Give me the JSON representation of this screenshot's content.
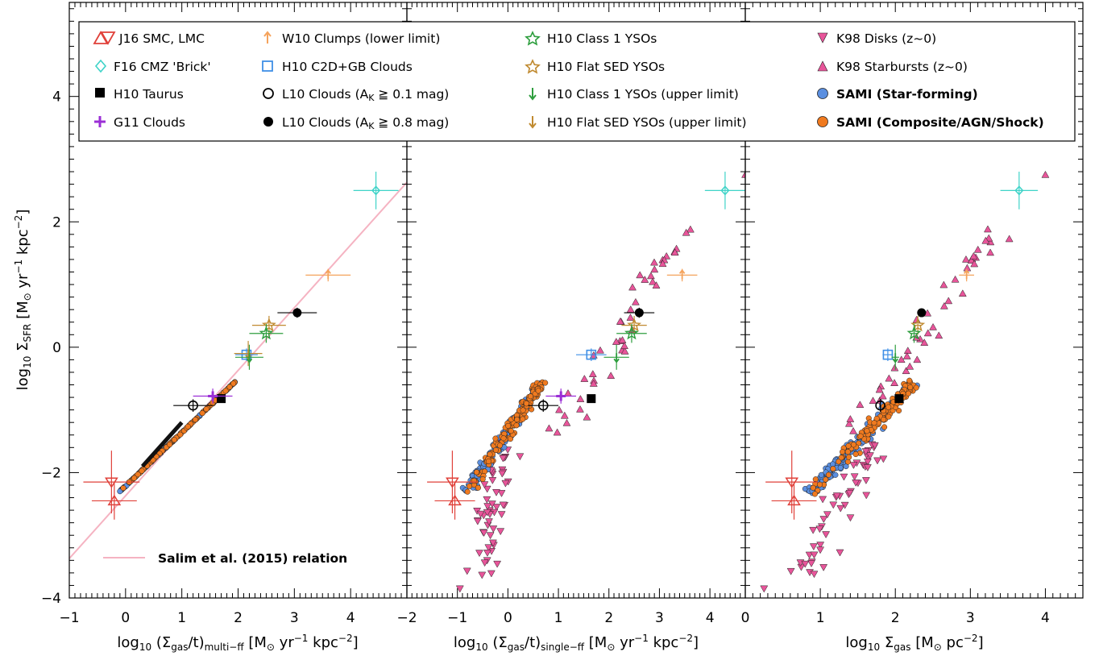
{
  "colors": {
    "sami_sf": "#5b8fe0",
    "sami_comp": "#f07a1f",
    "j16": "#e0413a",
    "f16": "#3fd3c8",
    "w10": "#f5a35c",
    "h10_c2d": "#3f8fe6",
    "h10_class1": "#2e9e3e",
    "h10_flat": "#c08a30",
    "g11": "#9b2fd6",
    "k98": "#e8559a",
    "salim": "#f5b3c2"
  },
  "legend": {
    "j16": "J16 SMC, LMC",
    "f16": "F16 CMZ 'Brick'",
    "h10_taurus": "H10 Taurus",
    "g11": "G11 Clouds",
    "w10": "W10 Clumps (lower limit)",
    "h10_c2d": "H10 C2D+GB Clouds",
    "l10_01_pre": "L10 Clouds (A",
    "l10_01_post": " ≧ 0.1 mag)",
    "l10_08_pre": "L10 Clouds (A",
    "l10_08_post": " ≧ 0.8 mag)",
    "h10_class1": "H10 Class 1 YSOs",
    "h10_flat": "H10 Flat SED YSOs",
    "h10_class1_ul": "H10 Class 1 YSOs (upper limit)",
    "h10_flat_ul": "H10 Flat SED YSOs (upper limit)",
    "k98_disks": "K98 Disks (z~0)",
    "k98_starbursts": "K98 Starbursts (z~0)",
    "sami_sf": "SAMI (Star-forming)",
    "sami_comp": "SAMI (Composite/AGN/Shock)",
    "salim": "Salim et al. (2015) relation",
    "k_sub": "K"
  },
  "chart_data": {
    "type": "scatter",
    "ylabel": "log10 ΣSFR [M⊙ yr−1 kpc−2]",
    "ylim": [
      -4,
      5.5
    ],
    "yticks": [
      "−4",
      "−2",
      "0",
      "2",
      "4"
    ],
    "panels": [
      {
        "xlabel": "log10 (Σgas/t)multi-ff [M⊙ yr−1 kpc−2]",
        "xlim": [
          -1,
          5
        ],
        "xticks": [
          "−1",
          "0",
          "1",
          "2",
          "3",
          "4"
        ],
        "line": {
          "name": "Salim et al. (2015) relation",
          "x": [
            -1,
            5
          ],
          "y": [
            -3.37,
            2.63
          ]
        },
        "points": [
          {
            "series": "J16 SMC",
            "marker": "tri-down-open",
            "x": -0.25,
            "y": -2.15,
            "xerr": 0.5,
            "yerr": 0.5
          },
          {
            "series": "J16 LMC",
            "marker": "tri-up-open",
            "x": -0.2,
            "y": -2.45,
            "xerr": 0.4,
            "yerr": 0.3
          },
          {
            "series": "F16 CMZ 'Brick'",
            "marker": "diamond-open",
            "x": 4.45,
            "y": 2.5,
            "xerr": 0.4,
            "yerr": 0.3
          },
          {
            "series": "W10 Clumps",
            "marker": "arrow-up",
            "x": 3.6,
            "y": 1.15,
            "xerr": 0.4,
            "yerr": 0.1
          },
          {
            "series": "L10 Clouds (0.8 mag)",
            "marker": "circle-filled",
            "x": 3.05,
            "y": 0.55,
            "xerr": 0.35,
            "yerr": 0.08
          },
          {
            "series": "H10 Flat SED YSOs",
            "marker": "star-open",
            "x": 2.55,
            "y": 0.35,
            "xerr": 0.3,
            "yerr": 0.15
          },
          {
            "series": "H10 Class 1 YSOs",
            "marker": "star-open",
            "x": 2.5,
            "y": 0.22,
            "xerr": 0.3,
            "yerr": 0.15
          },
          {
            "series": "H10 C2D+GB Clouds",
            "marker": "square-open",
            "x": 2.15,
            "y": -0.12,
            "xerr": 0.2,
            "yerr": 0.1
          },
          {
            "series": "H10 Flat SED YSOs (upper limit)",
            "marker": "arrow-down",
            "x": 2.18,
            "y": -0.1,
            "xerr": 0.25,
            "yerr": 0.2
          },
          {
            "series": "H10 Class 1 YSOs (upper limit)",
            "marker": "arrow-down",
            "x": 2.2,
            "y": -0.16,
            "xerr": 0.25,
            "yerr": 0.2
          },
          {
            "series": "H10 Taurus",
            "marker": "square-filled",
            "x": 1.7,
            "y": -0.82
          },
          {
            "series": "G11 Clouds",
            "marker": "plus",
            "x": 1.55,
            "y": -0.78,
            "xerr": 0.35,
            "yerr": 0.12
          },
          {
            "series": "L10 Clouds (0.1 mag)",
            "marker": "circle-open",
            "x": 1.2,
            "y": -0.93,
            "xerr": 0.35,
            "yerr": 0.1
          }
        ]
      },
      {
        "xlabel": "log10 (Σgas/t)single-ff [M⊙ yr−1 kpc−2]",
        "xlim": [
          -2,
          4.7
        ],
        "xticks": [
          "−2",
          "−1",
          "0",
          "1",
          "2",
          "3",
          "4"
        ],
        "points": [
          {
            "series": "J16 SMC",
            "marker": "tri-down-open",
            "x": -1.1,
            "y": -2.15,
            "xerr": 0.5,
            "yerr": 0.5
          },
          {
            "series": "J16 LMC",
            "marker": "tri-up-open",
            "x": -1.05,
            "y": -2.45,
            "xerr": 0.4,
            "yerr": 0.3
          },
          {
            "series": "F16 CMZ 'Brick'",
            "marker": "diamond-open",
            "x": 4.3,
            "y": 2.5,
            "xerr": 0.4,
            "yerr": 0.3
          },
          {
            "series": "W10 Clumps",
            "marker": "arrow-up",
            "x": 3.45,
            "y": 1.15,
            "xerr": 0.3,
            "yerr": 0.1
          },
          {
            "series": "L10 Clouds (0.8 mag)",
            "marker": "circle-filled",
            "x": 2.6,
            "y": 0.55,
            "xerr": 0.3,
            "yerr": 0.08
          },
          {
            "series": "H10 Flat SED YSOs",
            "marker": "star-open",
            "x": 2.5,
            "y": 0.35,
            "xerr": 0.25,
            "yerr": 0.15
          },
          {
            "series": "H10 Class 1 YSOs",
            "marker": "star-open",
            "x": 2.45,
            "y": 0.22,
            "xerr": 0.3,
            "yerr": 0.15
          },
          {
            "series": "H10 C2D+GB Clouds",
            "marker": "square-open",
            "x": 1.65,
            "y": -0.12,
            "xerr": 0.3,
            "yerr": 0.1
          },
          {
            "series": "H10 Class 1 YSOs (upper limit)",
            "marker": "arrow-down",
            "x": 2.15,
            "y": -0.16,
            "xerr": 0.25,
            "yerr": 0.2
          },
          {
            "series": "H10 Taurus",
            "marker": "square-filled",
            "x": 1.65,
            "y": -0.82
          },
          {
            "series": "G11 Clouds",
            "marker": "plus",
            "x": 1.05,
            "y": -0.78,
            "xerr": 0.3,
            "yerr": 0.12
          },
          {
            "series": "L10 Clouds (0.1 mag)",
            "marker": "circle-open",
            "x": 0.7,
            "y": -0.93,
            "xerr": 0.3,
            "yerr": 0.1
          }
        ]
      },
      {
        "xlabel": "log10 Σgas [M⊙ pc−2]",
        "xlim": [
          0,
          4.5
        ],
        "xticks": [
          "0",
          "1",
          "2",
          "3",
          "4"
        ],
        "points": [
          {
            "series": "J16 SMC",
            "marker": "tri-down-open",
            "x": 0.62,
            "y": -2.15,
            "xerr": 0.35,
            "yerr": 0.5
          },
          {
            "series": "J16 LMC",
            "marker": "tri-up-open",
            "x": 0.65,
            "y": -2.45,
            "xerr": 0.3,
            "yerr": 0.3
          },
          {
            "series": "F16 CMZ 'Brick'",
            "marker": "diamond-open",
            "x": 3.65,
            "y": 2.5,
            "xerr": 0.25,
            "yerr": 0.3
          },
          {
            "series": "W10 Clumps",
            "marker": "arrow-up",
            "x": 2.95,
            "y": 1.15,
            "xerr": 0.1,
            "yerr": 0.1
          },
          {
            "series": "L10 Clouds (0.8 mag)",
            "marker": "circle-filled",
            "x": 2.35,
            "y": 0.55
          },
          {
            "series": "H10 Flat SED YSOs",
            "marker": "star-open",
            "x": 2.3,
            "y": 0.35,
            "xerr": 0.05,
            "yerr": 0.15
          },
          {
            "series": "H10 Class 1 YSOs",
            "marker": "star-open",
            "x": 2.25,
            "y": 0.22,
            "xerr": 0.05,
            "yerr": 0.15
          },
          {
            "series": "H10 C2D+GB Clouds",
            "marker": "square-open",
            "x": 1.9,
            "y": -0.12,
            "xerr": 0.07,
            "yerr": 0.1
          },
          {
            "series": "H10 Class 1 YSOs (upper limit)",
            "marker": "arrow-down",
            "x": 2.0,
            "y": -0.16,
            "xerr": 0.05,
            "yerr": 0.2
          },
          {
            "series": "H10 Taurus",
            "marker": "square-filled",
            "x": 2.05,
            "y": -0.82
          },
          {
            "series": "L10 Clouds (0.1 mag)",
            "marker": "circle-open",
            "x": 1.8,
            "y": -0.93,
            "yerr": 0.1
          }
        ]
      }
    ],
    "sami_distribution": {
      "note_free": false,
      "panel_ranges_x": [
        [
          -0.1,
          1.95
        ],
        [
          -0.8,
          0.65
        ],
        [
          0.9,
          2.25
        ]
      ],
      "y_range": [
        -2.3,
        -0.55
      ],
      "star_forming_count": 170,
      "composite_count": 90
    },
    "k98_distribution": {
      "disks_y_range": [
        -3.85,
        -1.4
      ],
      "starbursts_y_range": [
        -1.5,
        2.75
      ]
    }
  }
}
